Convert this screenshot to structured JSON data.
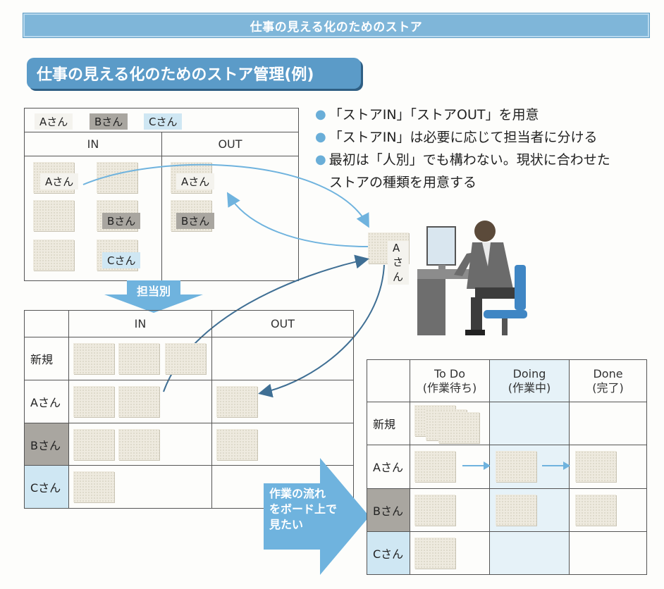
{
  "banner": {
    "title": "仕事の見える化のためのストア"
  },
  "section": {
    "title": "仕事の見える化のためのストア管理(例)"
  },
  "bullets": [
    {
      "text": "「ストアIN」「ストアOUT」を用意"
    },
    {
      "text": "「ストアIN」は必要に応じて担当者に分ける"
    },
    {
      "text": "最初は「人別」でも構わない。現状に合わせた",
      "cont": "ストアの種類を用意する"
    }
  ],
  "top_table": {
    "legend": [
      "Aさん",
      "Bさん",
      "Cさん"
    ],
    "in_label": "IN",
    "out_label": "OUT",
    "in_tags": [
      "Aさん",
      "Bさん",
      "Cさん"
    ],
    "out_tags": [
      "Aさん",
      "Bさん"
    ]
  },
  "split_arrow": {
    "label": "担当別"
  },
  "worker": {
    "tag": "Aさん"
  },
  "person_table": {
    "in_label": "IN",
    "out_label": "OUT",
    "rows": [
      "新規",
      "Aさん",
      "Bさん",
      "Cさん"
    ]
  },
  "flow_label": {
    "line1": "作業の流れ",
    "line2": "をボード上で",
    "line3": "見たい"
  },
  "kanban": {
    "columns": [
      {
        "label": "To Do",
        "sub": "(作業待ち)"
      },
      {
        "label": "Doing",
        "sub": "(作業中)"
      },
      {
        "label": "Done",
        "sub": "(完了)"
      }
    ],
    "rows": [
      "新規",
      "Aさん",
      "Bさん",
      "Cさん"
    ]
  },
  "colors": {
    "banner": "#7fb6d9",
    "section": "#5b9bc8",
    "arrow": "#6fb3de",
    "b_row": "#a9a6a0",
    "c_row": "#cfe7f3",
    "doing_col": "#e6f2f8"
  }
}
